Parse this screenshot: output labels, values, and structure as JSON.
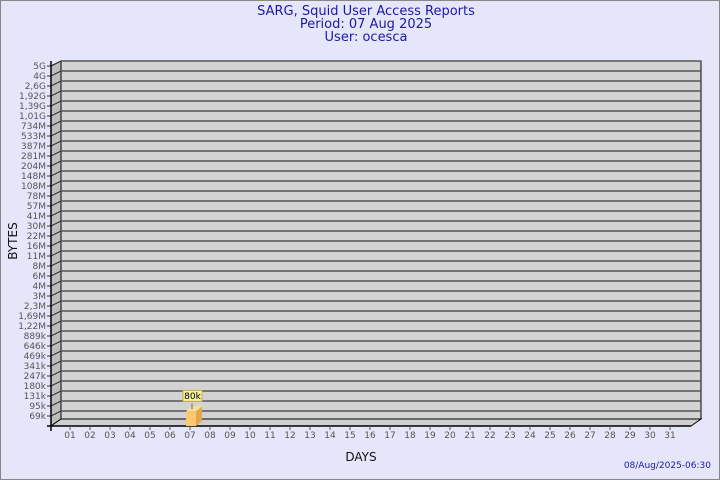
{
  "chart_data": {
    "type": "bar",
    "title": "SARG, Squid User Access Reports",
    "subtitle_period": "Period: 07 Aug 2025",
    "subtitle_user": "User: ocesca",
    "xlabel": "DAYS",
    "ylabel": "BYTES",
    "y_scale": "log",
    "grid": true,
    "categories": [
      "01",
      "02",
      "03",
      "04",
      "05",
      "06",
      "07",
      "08",
      "09",
      "10",
      "11",
      "12",
      "13",
      "14",
      "15",
      "16",
      "17",
      "18",
      "19",
      "20",
      "21",
      "22",
      "23",
      "24",
      "25",
      "26",
      "27",
      "28",
      "29",
      "30",
      "31"
    ],
    "y_ticks": [
      "5G",
      "4G",
      "2,6G",
      "1,92G",
      "1,39G",
      "1,01G",
      "734M",
      "533M",
      "387M",
      "281M",
      "204M",
      "148M",
      "108M",
      "78M",
      "57M",
      "41M",
      "30M",
      "22M",
      "16M",
      "11M",
      "8M",
      "6M",
      "4M",
      "3M",
      "2,3M",
      "1,69M",
      "1,22M",
      "889k",
      "646k",
      "469k",
      "341k",
      "247k",
      "180k",
      "131k",
      "95k",
      "69k"
    ],
    "bars": [
      {
        "category": "07",
        "value": 80000,
        "label": "80k"
      }
    ],
    "colors": {
      "background": "#e6e6fa",
      "plot": "#d3d3d3",
      "bar": "#ffc870",
      "title": "#1a1aa6"
    }
  },
  "footer": {
    "timestamp": "08/Aug/2025-06:30"
  }
}
